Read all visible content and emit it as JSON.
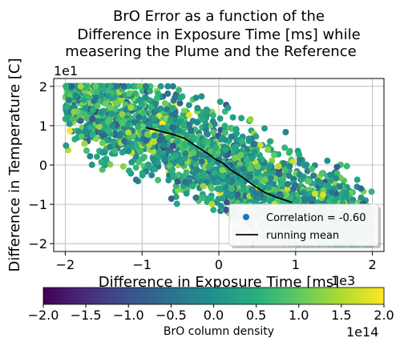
{
  "chart_data": {
    "type": "scatter",
    "title_lines": [
      "BrO Error as a function of the",
      "Difference in Exposure Time [ms] while",
      "measering the Plume and the Reference"
    ],
    "xlabel": "Difference in Exposure Time [ms]",
    "ylabel": "Difference in Temperature [C]",
    "x_multiplier": "1e3",
    "y_multiplier": "1e1",
    "xlim": [
      -2.15,
      2.15
    ],
    "ylim": [
      -2.2,
      2.2
    ],
    "x_ticks": [
      -2,
      -1,
      0,
      1,
      2
    ],
    "x_tick_labels": [
      "−2",
      "−1",
      "0",
      "1",
      "2"
    ],
    "y_ticks": [
      -2,
      -1,
      0,
      1,
      2
    ],
    "y_tick_labels": [
      "−2",
      "−1",
      "0",
      "1",
      "2"
    ],
    "grid": true,
    "legend": {
      "placement": "lower-right",
      "entries": [
        {
          "kind": "scatter",
          "label": "Correlation = -0.60",
          "color": "#1f77b4"
        },
        {
          "kind": "line",
          "label": "running mean",
          "color": "#000000"
        }
      ]
    },
    "running_mean": {
      "x": [
        -0.95,
        -0.8,
        -0.6,
        -0.45,
        -0.35,
        -0.25,
        -0.15,
        -0.05,
        0.05,
        0.15,
        0.3,
        0.45,
        0.6,
        0.75,
        0.95
      ],
      "y": [
        0.95,
        0.88,
        0.78,
        0.68,
        0.55,
        0.42,
        0.3,
        0.15,
        0.05,
        -0.12,
        -0.3,
        -0.52,
        -0.7,
        -0.82,
        -0.95
      ]
    },
    "scatter_model": {
      "n_points": 2600,
      "slope": -0.6,
      "spread": 0.55,
      "x_range": [
        -2,
        2
      ],
      "y_range": [
        -2.0,
        2.0
      ],
      "c_range": [
        -2.0,
        2.0
      ]
    },
    "colorbar": {
      "cmap": "viridis",
      "range": [
        -2.0,
        2.0
      ],
      "ticks": [
        -2.0,
        -1.5,
        -1.0,
        -0.5,
        0.0,
        0.5,
        1.0,
        1.5,
        2.0
      ],
      "tick_labels": [
        "−2.0",
        "−1.5",
        "−1.0",
        "−0.5",
        "0.0",
        "0.5",
        "1.0",
        "1.5",
        "2.0"
      ],
      "label": "BrO column density",
      "multiplier": "1e14"
    }
  }
}
